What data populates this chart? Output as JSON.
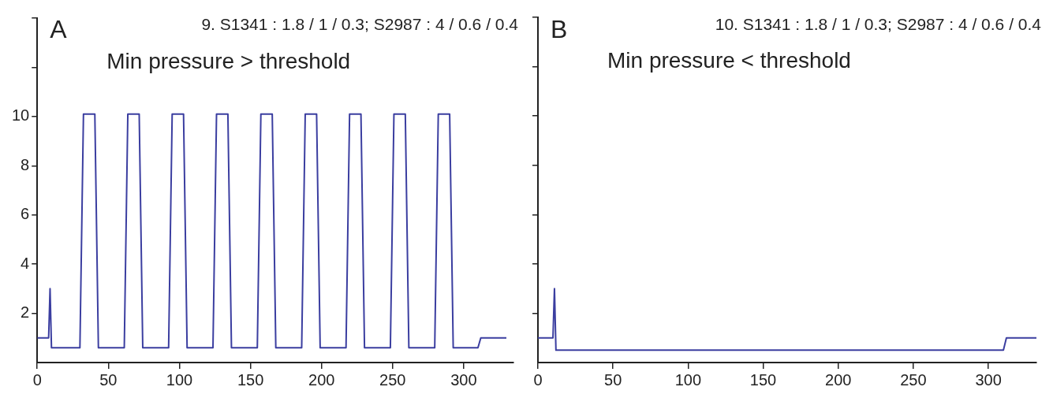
{
  "chart_data": [
    {
      "type": "line",
      "title": "9. S1341 : 1.8 / 1 / 0.3; S2987 : 4 / 0.6 / 0.4",
      "annotations": [
        "A",
        "Min pressure > threshold"
      ],
      "xlim": [
        0,
        335
      ],
      "ylim": [
        0,
        14
      ],
      "xticks": [
        0,
        50,
        100,
        150,
        200,
        250,
        300
      ],
      "yticks": [
        2,
        4,
        6,
        8,
        10,
        {
          "value": 12,
          "label": null
        },
        {
          "value": 14,
          "label": null
        }
      ],
      "legend": false,
      "marker": "none",
      "line_style": "solid",
      "series": [
        {
          "color": "#3b3ea0",
          "x": [
            0,
            8,
            9,
            10,
            30,
            32.5,
            40.5,
            43,
            61.2,
            63.7,
            71.7,
            74.2,
            92.4,
            94.9,
            102.9,
            105.4,
            123.6,
            126.1,
            134.1,
            136.6,
            154.8,
            157.3,
            165.3,
            167.8,
            186,
            188.5,
            196.5,
            199,
            217.2,
            219.7,
            227.7,
            230.2,
            248.4,
            250.9,
            258.9,
            261.4,
            279.6,
            282.1,
            290.1,
            292.6,
            310,
            312,
            330
          ],
          "values": [
            1,
            1,
            3,
            0.6,
            0.6,
            10.1,
            10.1,
            0.6,
            0.6,
            10.1,
            10.1,
            0.6,
            0.6,
            10.1,
            10.1,
            0.6,
            0.6,
            10.1,
            10.1,
            0.6,
            0.6,
            10.1,
            10.1,
            0.6,
            0.6,
            10.1,
            10.1,
            0.6,
            0.6,
            10.1,
            10.1,
            0.6,
            0.6,
            10.1,
            10.1,
            0.6,
            0.6,
            10.1,
            10.1,
            0.6,
            0.6,
            1,
            1
          ]
        }
      ]
    },
    {
      "type": "line",
      "title": "10. S1341 : 1.8 / 1 / 0.3; S2987 : 4 / 0.6 / 0.4",
      "annotations": [
        "B",
        "Min pressure < threshold"
      ],
      "xlim": [
        0,
        332
      ],
      "ylim": [
        0,
        14
      ],
      "xticks": [
        0,
        50,
        100,
        150,
        200,
        250,
        300
      ],
      "yticks": [
        {
          "value": 2,
          "label": null
        },
        {
          "value": 4,
          "label": null
        },
        {
          "value": 6,
          "label": null
        },
        {
          "value": 8,
          "label": null
        },
        {
          "value": 10,
          "label": null
        },
        {
          "value": 12,
          "label": null
        },
        {
          "value": 14,
          "label": null
        }
      ],
      "tick_labels": "x",
      "legend": false,
      "marker": "none",
      "line_style": "solid",
      "series": [
        {
          "color": "#3b3ea0",
          "x": [
            0,
            10,
            11,
            12,
            310,
            312,
            332
          ],
          "values": [
            1,
            1,
            3,
            0.5,
            0.5,
            1,
            1
          ]
        }
      ]
    }
  ]
}
